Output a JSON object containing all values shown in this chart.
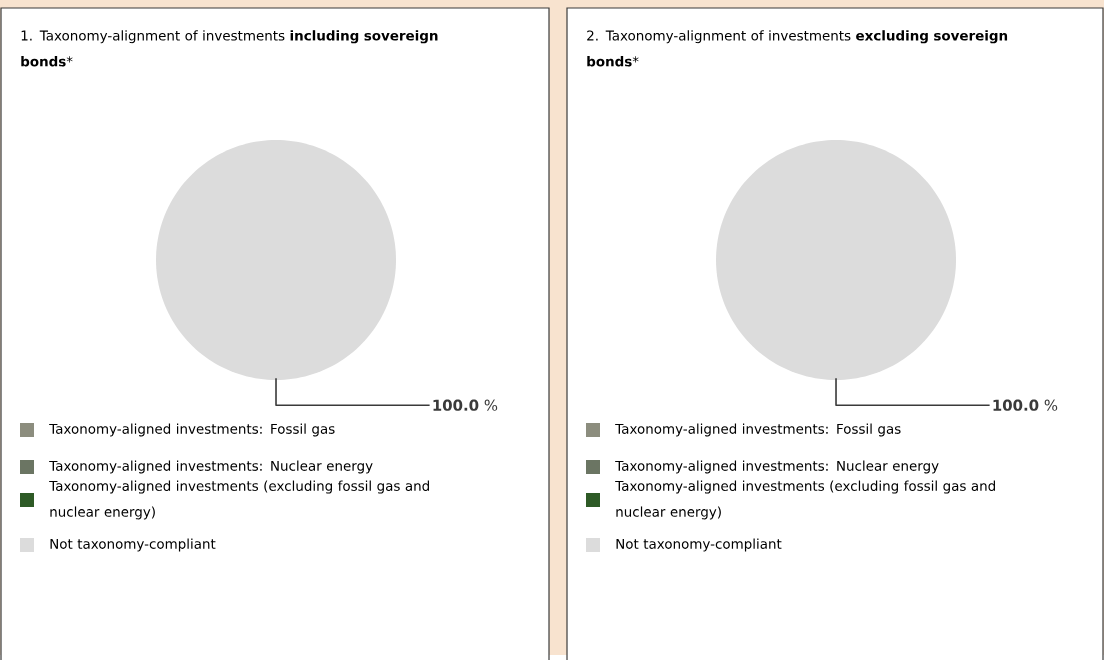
{
  "chart_data": [
    {
      "type": "pie",
      "title": "1. Taxonomy-alignment of investments **including sovereign bonds***",
      "categories": [
        "Taxonomy-aligned investments: Fossil gas",
        "Taxonomy-aligned investments: Nuclear energy",
        "Taxonomy-aligned investments (excluding fossil gas and nuclear energy)",
        "Not taxonomy-compliant"
      ],
      "values": [
        0,
        0,
        0,
        100
      ],
      "colors": [
        "#8c8d7e",
        "#6b7563",
        "#2e5a26",
        "#dcdcdc"
      ],
      "value_labels": [
        null,
        null,
        null,
        "**100.0** %"
      ],
      "legend": "bottom"
    },
    {
      "type": "pie",
      "title": "2. Taxonomy-alignment of investments **excluding sovereign bonds***",
      "categories": [
        "Taxonomy-aligned investments: Fossil gas",
        "Taxonomy-aligned investments: Nuclear energy",
        "Taxonomy-aligned investments (excluding fossil gas and nuclear energy)",
        "Not taxonomy-compliant"
      ],
      "values": [
        0,
        0,
        0,
        100
      ],
      "colors": [
        "#8c8d7e",
        "#6b7563",
        "#2e5a26",
        "#dcdcdc"
      ],
      "value_labels": [
        null,
        null,
        null,
        "**100.0** %"
      ],
      "legend": "bottom"
    }
  ]
}
